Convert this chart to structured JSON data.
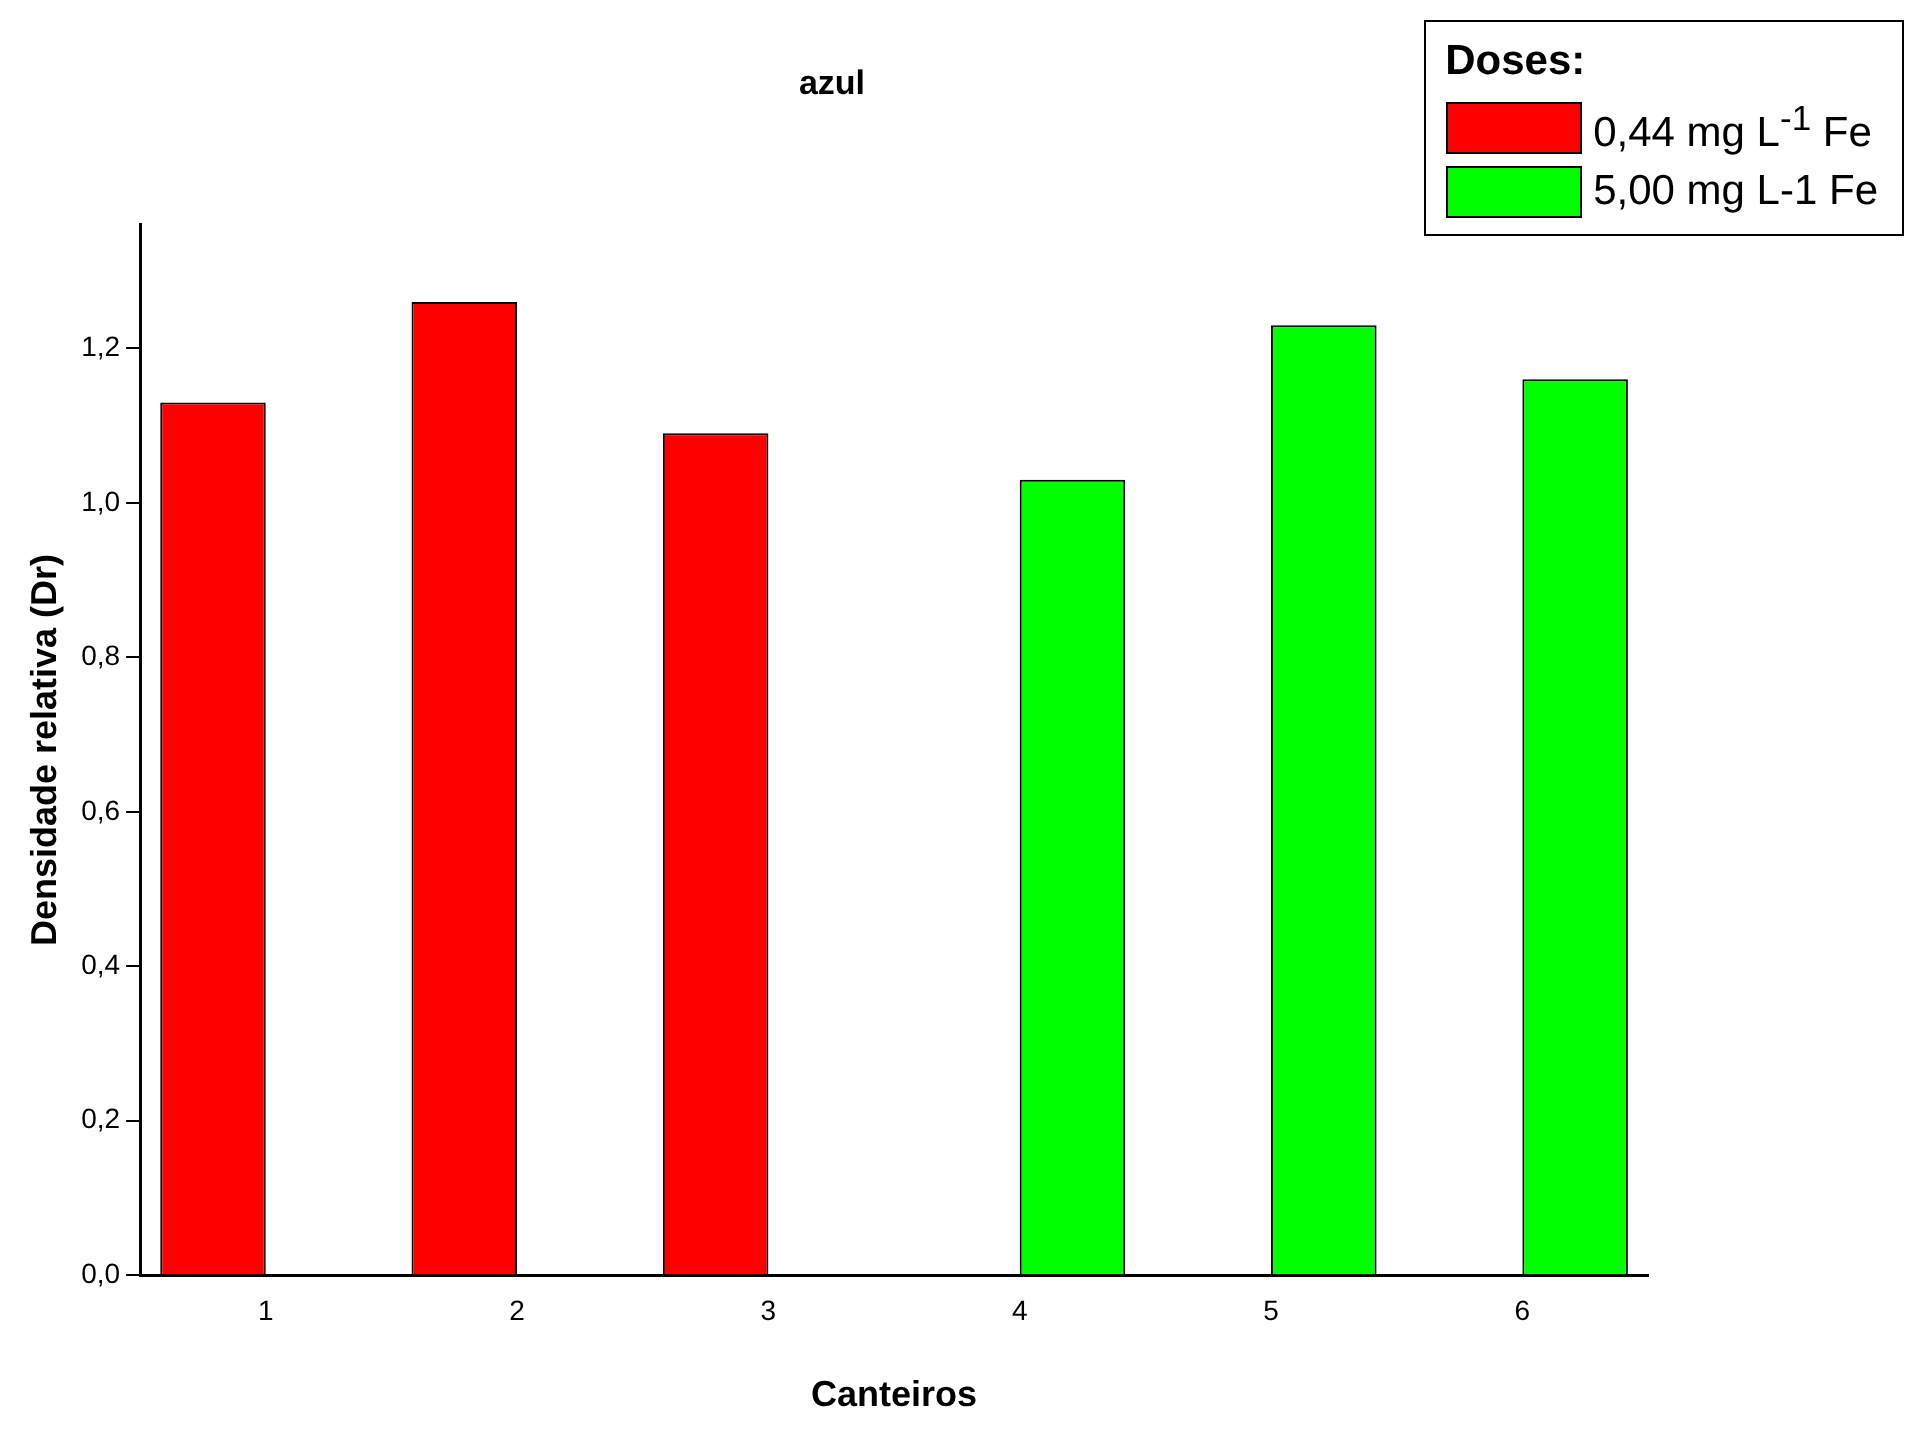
{
  "chart_data": {
    "type": "bar",
    "title": "azul",
    "xlabel": "Canteiros",
    "ylabel": "Densidade relativa (Dr)",
    "legend_title": "Doses:",
    "categories": [
      "1",
      "2",
      "3",
      "4",
      "5",
      "6"
    ],
    "series": [
      {
        "name": "0,44 mg L$^{-1}$ Fe",
        "color": "#ff0000",
        "values": [
          1.13,
          1.26,
          1.09,
          null,
          null,
          null
        ]
      },
      {
        "name": "5,00 mg L-1 Fe",
        "color": "#00ff00",
        "values": [
          null,
          null,
          null,
          1.03,
          1.23,
          1.16
        ]
      }
    ],
    "ylim": [
      0,
      1.36
    ],
    "yticks": [
      {
        "value": 0,
        "label": "0,0"
      },
      {
        "value": 0.2,
        "label": "0,2"
      },
      {
        "value": 0.4,
        "label": "0,4"
      },
      {
        "value": 0.6,
        "label": "0,6"
      },
      {
        "value": 0.8,
        "label": "0,8"
      },
      {
        "value": 1,
        "label": "1,0"
      },
      {
        "value": 1.2,
        "label": "1,2"
      }
    ],
    "grid": false,
    "legend": "top right"
  }
}
